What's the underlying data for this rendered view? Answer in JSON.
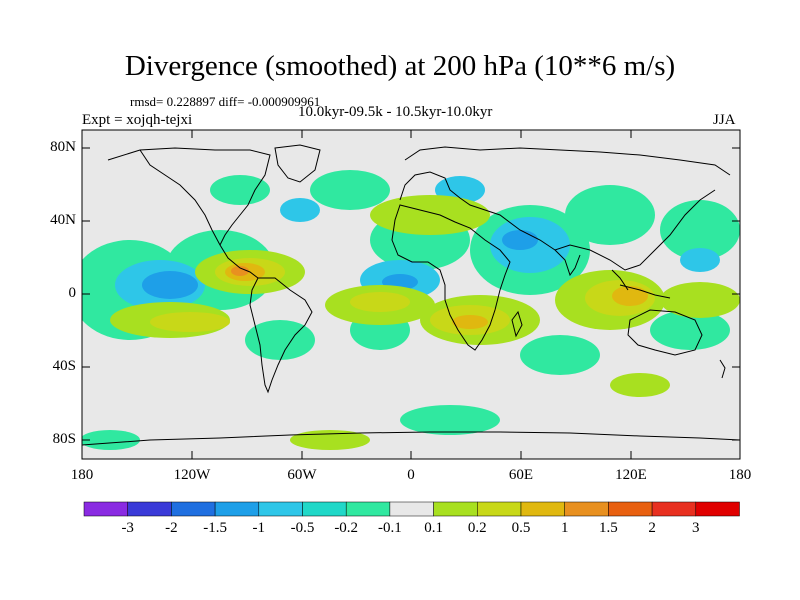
{
  "figure": {
    "title": "Divergence (smoothed) at 200 hPa (10**6 m/s)",
    "stats": "rmsd= 0.228897  diff= -0.000909961",
    "period": "10.0kyr-09.5k - 10.5kyr-10.0kyr",
    "expt": "Expt = xojqh-tejxi",
    "season": "JJA"
  },
  "axes": {
    "lat_labels": [
      "80N",
      "40N",
      "0",
      "40S",
      "80S"
    ],
    "lon_labels": [
      "180",
      "120W",
      "60W",
      "0",
      "60E",
      "120E",
      "180"
    ]
  },
  "colorbar": {
    "labels": [
      "-3",
      "-2",
      "-1.5",
      "-1",
      "-0.5",
      "-0.2",
      "-0.1",
      "0.1",
      "0.2",
      "0.5",
      "1",
      "1.5",
      "2",
      "3"
    ],
    "colors": [
      "#8a2be2",
      "#3a3ad8",
      "#1f6fe0",
      "#1e9fe8",
      "#2ec6e8",
      "#20d8c8",
      "#30e8a0",
      "#e8e8e8",
      "#a8e020",
      "#c8d818",
      "#e0b810",
      "#e89020",
      "#e86010",
      "#e83020",
      "#e00000"
    ]
  },
  "colors": {
    "land_line": "#000000",
    "frame": "#000000",
    "background": "#e8e8e8"
  }
}
